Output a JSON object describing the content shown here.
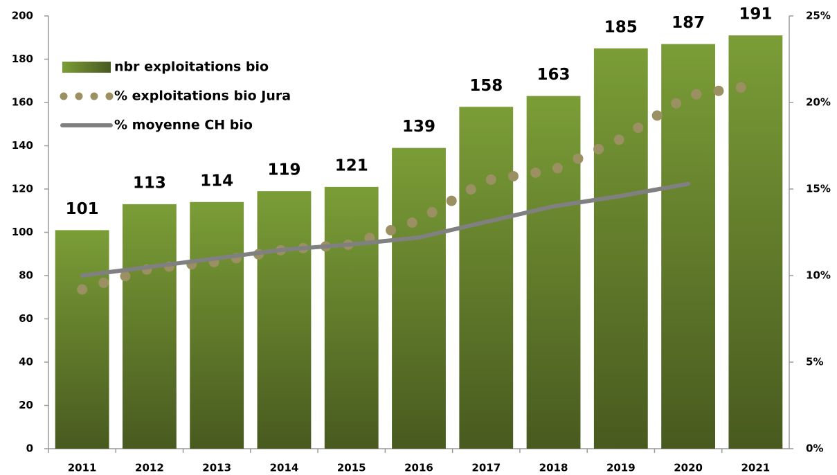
{
  "chart_data": {
    "type": "bar",
    "categories": [
      "2011",
      "2012",
      "2013",
      "2014",
      "2015",
      "2016",
      "2017",
      "2018",
      "2019",
      "2020",
      "2021"
    ],
    "series": [
      {
        "name": "nbr exploitations bio",
        "type": "bar",
        "color": "#6b8a2e",
        "values": [
          101,
          113,
          114,
          119,
          121,
          139,
          158,
          163,
          185,
          187,
          191
        ]
      },
      {
        "name": "% exploitations bio Jura",
        "type": "line",
        "style": "dotted",
        "axis": "y2",
        "color": "#9a9062",
        "values": [
          9.2,
          10.4,
          10.8,
          11.5,
          11.8,
          13.2,
          15.5,
          16.1,
          17.9,
          20.4,
          21.0
        ]
      },
      {
        "name": "% moyenne CH bio",
        "type": "line",
        "axis": "y2",
        "color": "#808080",
        "values": [
          10.0,
          10.5,
          11.0,
          11.5,
          11.8,
          12.2,
          13.1,
          14.0,
          14.6,
          15.3,
          null
        ]
      }
    ],
    "ylim": [
      0,
      200
    ],
    "yticks": [
      0,
      20,
      40,
      60,
      80,
      100,
      120,
      140,
      160,
      180,
      200
    ],
    "y2lim": [
      0,
      25
    ],
    "y2ticks": [
      {
        "value": 0,
        "label": "0%"
      },
      {
        "value": 5,
        "label": "5%"
      },
      {
        "value": 10,
        "label": "10%"
      },
      {
        "value": 15,
        "label": "15%"
      },
      {
        "value": 20,
        "label": "20%"
      },
      {
        "value": 25,
        "label": "25%"
      }
    ],
    "legend": "upper left"
  }
}
